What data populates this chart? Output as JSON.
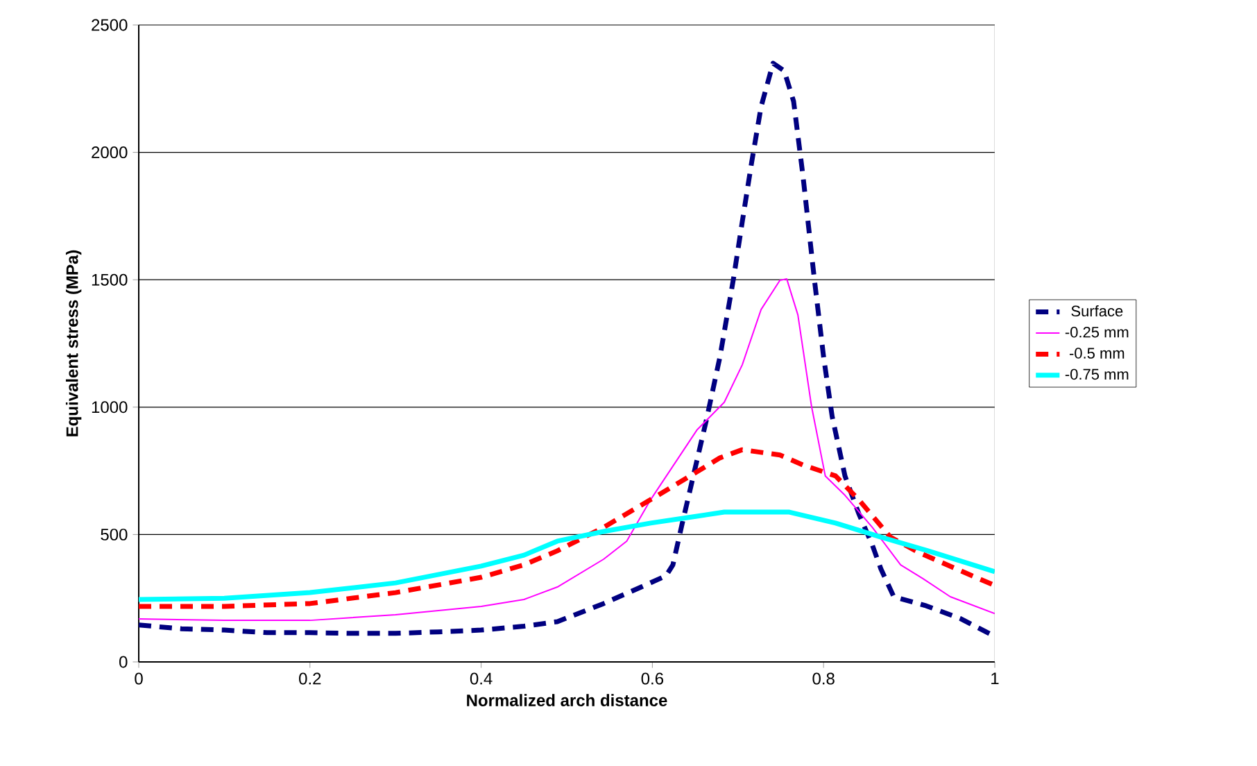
{
  "chart_data": {
    "type": "line",
    "xlabel": "Normalized arch distance",
    "ylabel": "Equivalent stress (MPa)",
    "xlim": [
      0,
      1
    ],
    "ylim": [
      0,
      2500
    ],
    "xticks": [
      0,
      0.2,
      0.4,
      0.6,
      0.8,
      1
    ],
    "yticks": [
      0,
      500,
      1000,
      1500,
      2000,
      2500
    ],
    "grid": "y",
    "legend": "right",
    "series": [
      {
        "name": "Surface",
        "color": "#000080",
        "line_style": "dashed",
        "x": [
          0,
          0.05,
          0.1,
          0.15,
          0.2,
          0.25,
          0.3,
          0.35,
          0.4,
          0.45,
          0.489,
          0.543,
          0.587,
          0.616,
          0.624,
          0.635,
          0.663,
          0.679,
          0.695,
          0.705,
          0.716,
          0.727,
          0.741,
          0.754,
          0.765,
          0.776,
          0.789,
          0.8,
          0.81,
          0.825,
          0.841,
          0.857,
          0.867,
          0.882,
          0.92,
          0.96,
          1.0
        ],
        "values": [
          145,
          130,
          125,
          115,
          115,
          112,
          112,
          118,
          125,
          140,
          158,
          229,
          294,
          338,
          381,
          545,
          948,
          1198,
          1509,
          1727,
          1961,
          2179,
          2350,
          2320,
          2200,
          1906,
          1509,
          1198,
          964,
          730,
          583,
          458,
          365,
          256,
          220,
          170,
          100
        ]
      },
      {
        "name": "-0.25 mm",
        "color": "#ff00ff",
        "line_style": "solid",
        "x": [
          0,
          0.1,
          0.2,
          0.3,
          0.4,
          0.45,
          0.489,
          0.543,
          0.57,
          0.598,
          0.652,
          0.684,
          0.705,
          0.727,
          0.749,
          0.757,
          0.77,
          0.786,
          0.802,
          0.825,
          0.857,
          0.89,
          0.916,
          0.948,
          1.0
        ],
        "values": [
          169,
          163,
          163,
          185,
          218,
          245,
          294,
          403,
          474,
          637,
          910,
          1019,
          1166,
          1383,
          1498,
          1503,
          1362,
          1002,
          730,
          654,
          528,
          381,
          327,
          256,
          190
        ]
      },
      {
        "name": "-0.5 mm",
        "color": "#ff0000",
        "line_style": "dashed",
        "x": [
          0,
          0.1,
          0.2,
          0.3,
          0.4,
          0.45,
          0.489,
          0.543,
          0.598,
          0.652,
          0.679,
          0.705,
          0.749,
          0.776,
          0.814,
          0.841,
          0.878,
          0.911,
          0.955,
          1.0
        ],
        "values": [
          218,
          218,
          229,
          272,
          332,
          381,
          436,
          528,
          637,
          746,
          801,
          833,
          812,
          773,
          730,
          637,
          490,
          430,
          365,
          300
        ]
      },
      {
        "name": "-0.75 mm",
        "color": "#00ffff",
        "line_style": "solid",
        "x": [
          0,
          0.1,
          0.2,
          0.3,
          0.4,
          0.45,
          0.489,
          0.543,
          0.598,
          0.652,
          0.684,
          0.76,
          0.814,
          0.867,
          0.922,
          1.0
        ],
        "values": [
          245,
          250,
          272,
          310,
          376,
          419,
          474,
          512,
          545,
          572,
          588,
          588,
          545,
          490,
          436,
          354
        ]
      }
    ]
  }
}
